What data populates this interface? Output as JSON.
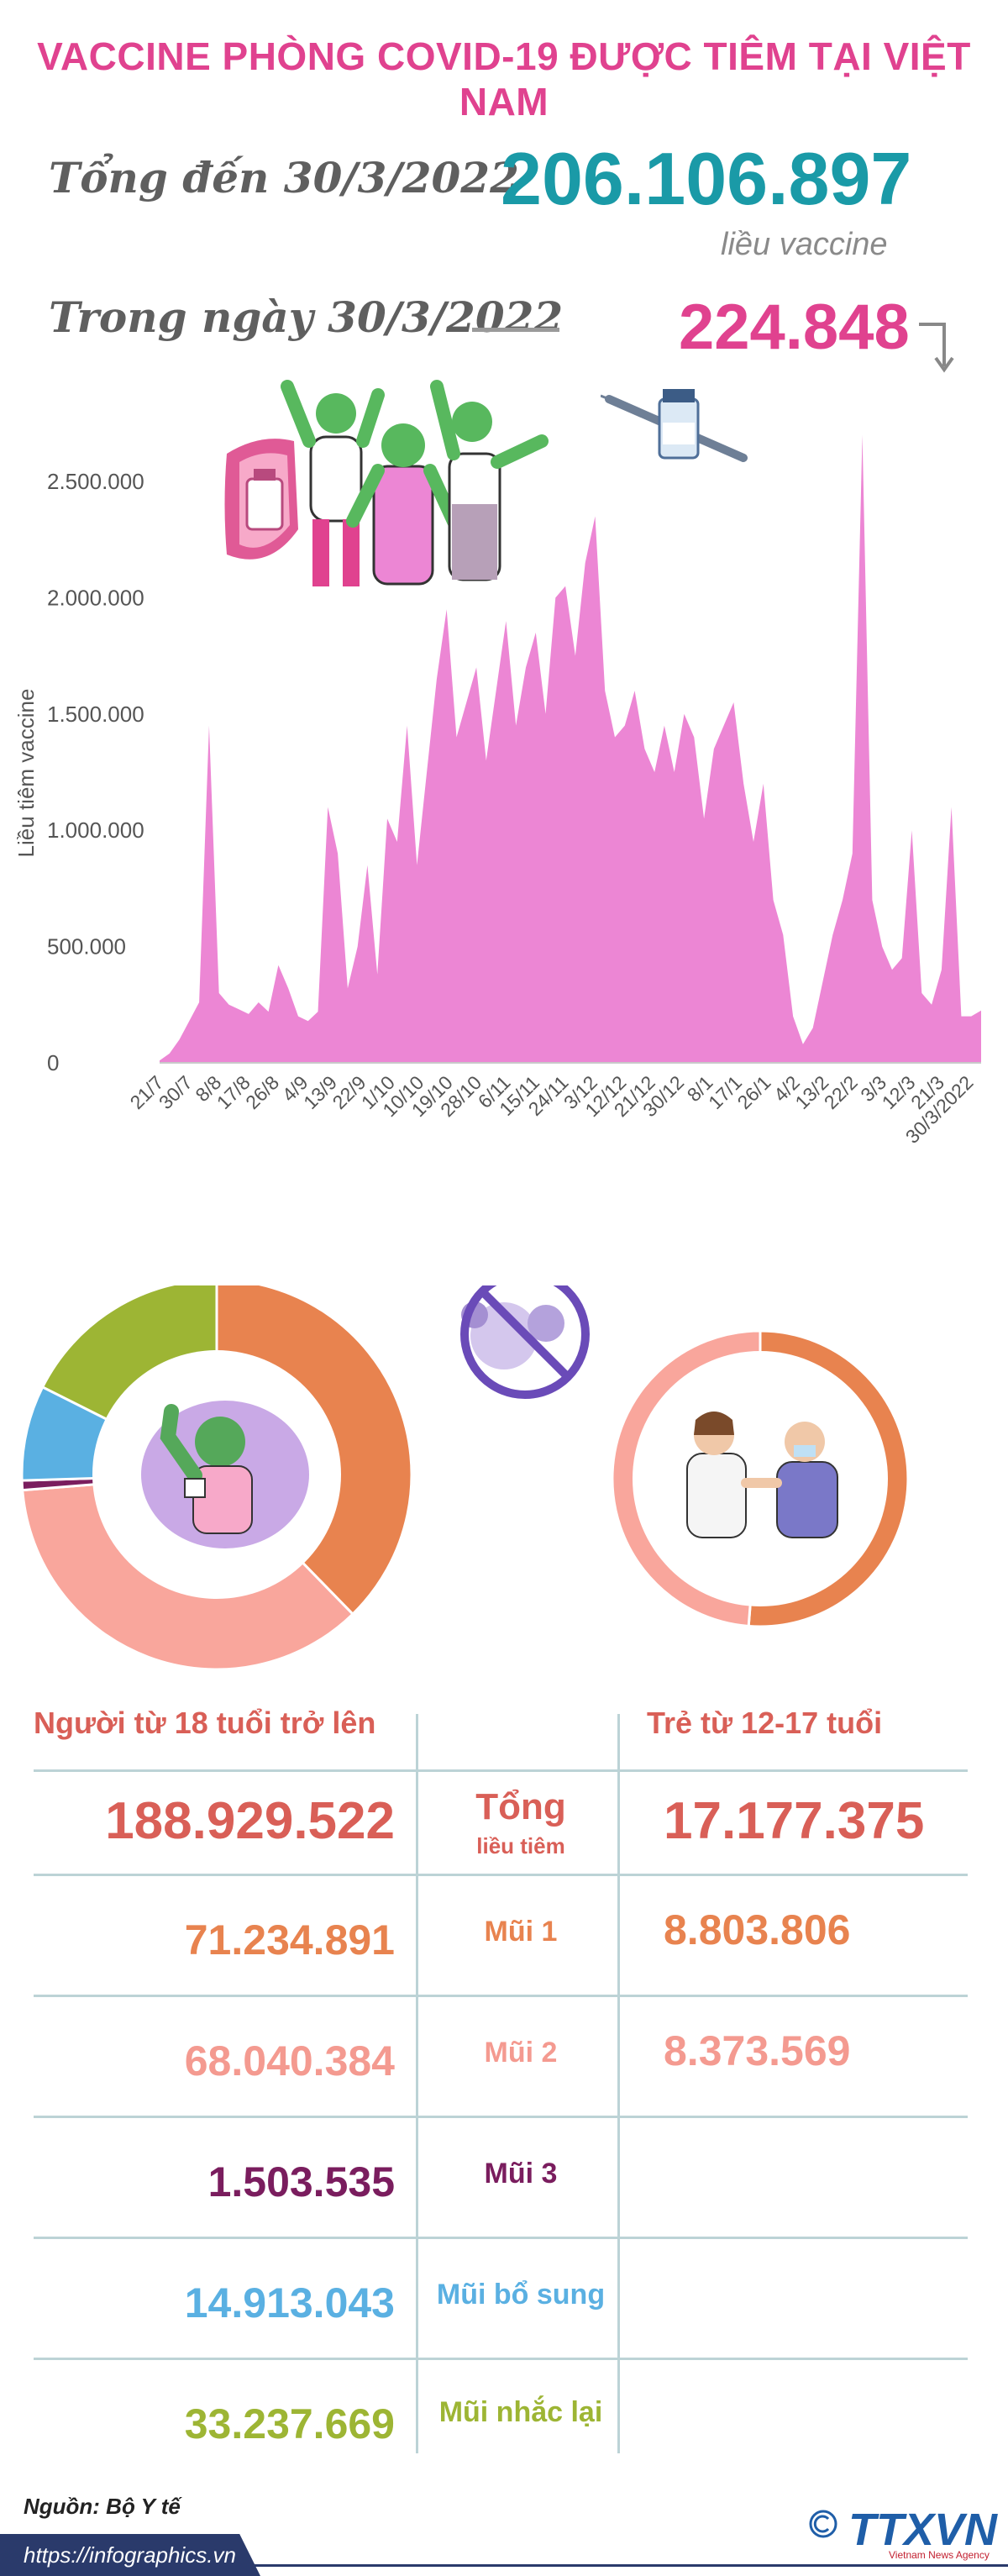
{
  "title": "VACCINE PHÒNG COVID-19 ĐƯỢC TIÊM TẠI VIỆT NAM",
  "summary": {
    "total_label": "Tổng đến 30/3/2022",
    "total_value": "206.106.897",
    "total_unit": "liều vaccine",
    "day_label": "Trong ngày 30/3/2022",
    "day_value": "224.848"
  },
  "chart_data": {
    "type": "area",
    "ylabel": "Liều tiêm vaccine",
    "ylim": [
      0,
      2500000
    ],
    "y_ticks": [
      0,
      500000,
      1000000,
      1500000,
      2000000,
      2500000
    ],
    "y_tick_labels": [
      "0",
      "500.000",
      "1.000.000",
      "1.500.000",
      "2.000.000",
      "2.500.000"
    ],
    "x_tick_labels": [
      "21/7",
      "30/7",
      "8/8",
      "17/8",
      "26/8",
      "4/9",
      "13/9",
      "22/9",
      "1/10",
      "10/10",
      "19/10",
      "28/10",
      "6/11",
      "15/11",
      "24/11",
      "3/12",
      "12/12",
      "21/12",
      "30/12",
      "8/1",
      "17/1",
      "26/1",
      "4/2",
      "13/2",
      "22/2",
      "3/3",
      "12/3",
      "21/3",
      "30/3/2022"
    ],
    "color": "#ec86d4",
    "series": [
      {
        "x": [
          "21/7",
          "25/7",
          "30/7",
          "3/8",
          "8/8",
          "12/8",
          "15/8",
          "17/8",
          "20/8",
          "23/8",
          "26/8",
          "29/8",
          "2/9",
          "4/9",
          "6/9",
          "9/9",
          "11/9",
          "13/9",
          "16/9",
          "19/9",
          "22/9",
          "25/9",
          "28/9",
          "1/10",
          "4/10",
          "7/10",
          "10/10",
          "13/10",
          "16/10",
          "19/10",
          "22/10",
          "25/10",
          "28/10",
          "31/10",
          "3/11",
          "6/11",
          "9/11",
          "12/11",
          "15/11",
          "18/11",
          "21/11",
          "24/11",
          "27/11",
          "30/11",
          "3/12",
          "6/12",
          "9/12",
          "12/12",
          "15/12",
          "18/12",
          "21/12",
          "24/12",
          "27/12",
          "30/12",
          "2/1",
          "5/1",
          "8/1",
          "11/1",
          "14/1",
          "17/1",
          "20/1",
          "23/1",
          "26/1",
          "29/1",
          "1/2",
          "4/2",
          "7/2",
          "10/2",
          "13/2",
          "16/2",
          "19/2",
          "22/2",
          "25/2",
          "28/2",
          "3/3",
          "6/3",
          "9/3",
          "12/3",
          "15/3",
          "18/3",
          "21/3",
          "24/3",
          "27/3",
          "30/3"
        ],
        "values": [
          10000,
          40000,
          100000,
          180000,
          260000,
          1450000,
          300000,
          250000,
          230000,
          210000,
          260000,
          220000,
          420000,
          320000,
          200000,
          180000,
          220000,
          1100000,
          900000,
          320000,
          500000,
          850000,
          380000,
          1050000,
          950000,
          1450000,
          850000,
          1250000,
          1650000,
          1950000,
          1400000,
          1550000,
          1700000,
          1300000,
          1600000,
          1900000,
          1450000,
          1700000,
          1850000,
          1500000,
          2000000,
          2050000,
          1750000,
          2150000,
          2350000,
          1600000,
          1400000,
          1450000,
          1600000,
          1350000,
          1250000,
          1450000,
          1250000,
          1500000,
          1400000,
          1050000,
          1350000,
          1450000,
          1550000,
          1200000,
          950000,
          1200000,
          700000,
          550000,
          200000,
          80000,
          150000,
          350000,
          550000,
          700000,
          900000,
          2700000,
          700000,
          500000,
          400000,
          450000,
          1000000,
          300000,
          250000,
          400000,
          1100000,
          200000,
          200000,
          224848
        ]
      }
    ]
  },
  "donuts": {
    "adults": {
      "segments": [
        {
          "label": "Mũi 1",
          "value": 71234891,
          "color": "#e8834f"
        },
        {
          "label": "Mũi 2",
          "value": 68040384,
          "color": "#f9a69c"
        },
        {
          "label": "Mũi 3",
          "value": 1503535,
          "color": "#7a1d5e"
        },
        {
          "label": "Mũi bổ sung",
          "value": 14913043,
          "color": "#5ab0e2"
        },
        {
          "label": "Mũi nhắc lại",
          "value": 33237669,
          "color": "#9db534"
        }
      ]
    },
    "teens": {
      "segments": [
        {
          "label": "Mũi 1",
          "value": 8803806,
          "color": "#e8834f"
        },
        {
          "label": "Mũi 2",
          "value": 8373569,
          "color": "#f9a69c"
        }
      ]
    }
  },
  "table": {
    "header_adults": "Người từ 18 tuổi trở lên",
    "header_teens": "Trẻ từ 12-17 tuổi",
    "rows": [
      {
        "label": "Tổng",
        "sublabel": "liều tiêm",
        "adults": "188.929.522",
        "teens": "17.177.375",
        "color": "#d95f57"
      },
      {
        "label": "Mũi 1",
        "adults": "71.234.891",
        "teens": "8.803.806",
        "color": "#e8834f"
      },
      {
        "label": "Mũi 2",
        "adults": "68.040.384",
        "teens": "8.373.569",
        "color": "#f49a90"
      },
      {
        "label": "Mũi 3",
        "adults": "1.503.535",
        "teens": "",
        "color": "#7a1d5e"
      },
      {
        "label": "Mũi bổ sung",
        "adults": "14.913.043",
        "teens": "",
        "color": "#5ab0e2"
      },
      {
        "label": "Mũi nhắc lại",
        "adults": "33.237.669",
        "teens": "",
        "color": "#9db534"
      }
    ]
  },
  "footer": {
    "source": "Nguồn: Bộ Y tế",
    "url": "https://infographics.vn",
    "logo": "TTXVN",
    "logo_sub": "Vietnam News Agency",
    "logo_icon": "copyright-icon"
  }
}
